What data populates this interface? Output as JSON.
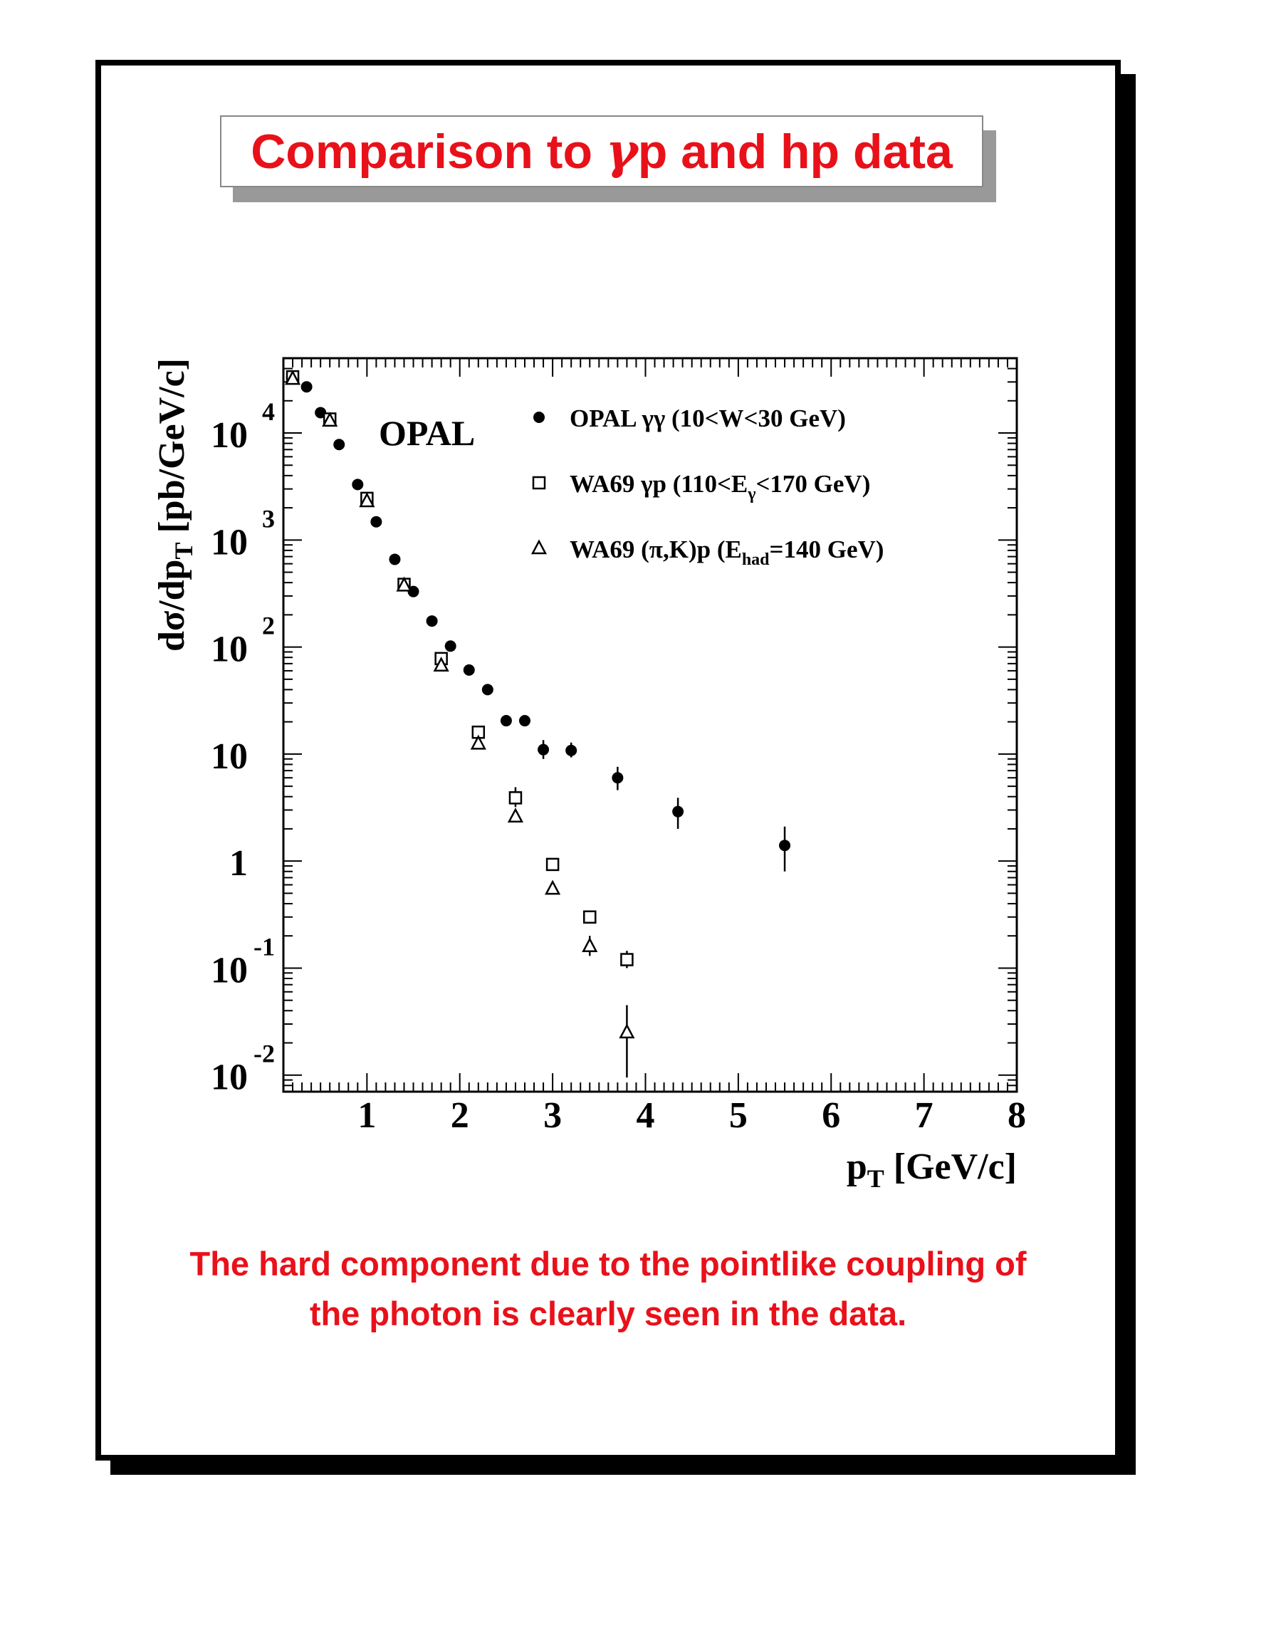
{
  "slide": {
    "title_prefix": "Comparison to ",
    "title_greek": "γ",
    "title_suffix": "p and hp data",
    "caption_line1": "The hard component due to the pointlike coupling of",
    "caption_line2": "the photon is clearly seen in the data."
  },
  "colors": {
    "accent": "#e8111a",
    "ink": "#000000",
    "shadow": "#999999"
  },
  "chart_data": {
    "type": "scatter",
    "title": "",
    "plot_label": "OPAL",
    "xlabel_main": "p",
    "xlabel_sub": "T",
    "xlabel_unit": "[GeV/c]",
    "ylabel_prefix": "dσ/dp",
    "ylabel_sub": "T",
    "ylabel_unit": "[pb/GeV/c]",
    "xlim": [
      0.1,
      8
    ],
    "ylim": [
      0.007,
      50000
    ],
    "yscale": "log",
    "x_ticks": [
      1,
      2,
      3,
      4,
      5,
      6,
      7,
      8
    ],
    "y_ticks": [
      {
        "value": 10000,
        "base": "10",
        "exp": "4"
      },
      {
        "value": 1000,
        "base": "10",
        "exp": "3"
      },
      {
        "value": 100,
        "base": "10",
        "exp": "2"
      },
      {
        "value": 10,
        "base": "10",
        "exp": ""
      },
      {
        "value": 1,
        "base": "1",
        "exp": ""
      },
      {
        "value": 0.1,
        "base": "10",
        "exp": "-1"
      },
      {
        "value": 0.01,
        "base": "10",
        "exp": "-2"
      }
    ],
    "legend_position": "top-right",
    "series": [
      {
        "name": "OPAL γγ (10<W<30 GeV)",
        "legend_main": "OPAL γγ (10<W<30 GeV)",
        "legend_sub": "",
        "legend_tail": "",
        "marker": "filled-circle",
        "points": [
          {
            "x": 0.19,
            "y": 33000
          },
          {
            "x": 0.35,
            "y": 27000
          },
          {
            "x": 0.5,
            "y": 15500
          },
          {
            "x": 0.7,
            "y": 7800
          },
          {
            "x": 0.9,
            "y": 3300
          },
          {
            "x": 1.1,
            "y": 1480
          },
          {
            "x": 1.3,
            "y": 660
          },
          {
            "x": 1.5,
            "y": 330
          },
          {
            "x": 1.7,
            "y": 175
          },
          {
            "x": 1.9,
            "y": 102
          },
          {
            "x": 2.1,
            "y": 61
          },
          {
            "x": 2.3,
            "y": 40
          },
          {
            "x": 2.5,
            "y": 20.5,
            "err": [
              18.5,
              23
            ]
          },
          {
            "x": 2.7,
            "y": 20.5,
            "err": [
              18.5,
              23
            ]
          },
          {
            "x": 2.9,
            "y": 11,
            "err": [
              9,
              13.5
            ]
          },
          {
            "x": 3.2,
            "y": 10.8,
            "err": [
              9.3,
              12.8
            ]
          },
          {
            "x": 3.7,
            "y": 6,
            "err": [
              4.6,
              7.6
            ]
          },
          {
            "x": 4.35,
            "y": 2.9,
            "err": [
              2,
              3.9
            ]
          },
          {
            "x": 5.5,
            "y": 1.4,
            "err": [
              0.8,
              2.1
            ]
          }
        ]
      },
      {
        "name": "WA69 γp (110<Eγ<170 GeV)",
        "legend_main": "WA69 γp (110<E",
        "legend_sub": "γ",
        "legend_tail": "<170 GeV)",
        "marker": "open-square",
        "points": [
          {
            "x": 0.2,
            "y": 33500
          },
          {
            "x": 0.6,
            "y": 13500
          },
          {
            "x": 1.0,
            "y": 2450
          },
          {
            "x": 1.4,
            "y": 385
          },
          {
            "x": 1.8,
            "y": 78
          },
          {
            "x": 2.2,
            "y": 16
          },
          {
            "x": 2.6,
            "y": 3.9,
            "err": [
              3.2,
              4.9
            ]
          },
          {
            "x": 3.0,
            "y": 0.93
          },
          {
            "x": 3.4,
            "y": 0.3
          },
          {
            "x": 3.8,
            "y": 0.12,
            "err": [
              0.1,
              0.145
            ]
          }
        ]
      },
      {
        "name": "WA69 (π,K)p (Ehad=140 GeV)",
        "legend_main": "WA69 (π,K)p (E",
        "legend_sub": "had",
        "legend_tail": "=140 GeV)",
        "marker": "open-triangle",
        "points": [
          {
            "x": 0.2,
            "y": 32000
          },
          {
            "x": 0.6,
            "y": 13000
          },
          {
            "x": 1.0,
            "y": 2300
          },
          {
            "x": 1.4,
            "y": 375
          },
          {
            "x": 1.8,
            "y": 67
          },
          {
            "x": 2.2,
            "y": 12.5
          },
          {
            "x": 2.6,
            "y": 2.6
          },
          {
            "x": 3.0,
            "y": 0.55
          },
          {
            "x": 3.4,
            "y": 0.16,
            "err": [
              0.13,
              0.2
            ]
          },
          {
            "x": 3.8,
            "y": 0.025,
            "err": [
              0.0095,
              0.045
            ]
          }
        ]
      }
    ]
  }
}
